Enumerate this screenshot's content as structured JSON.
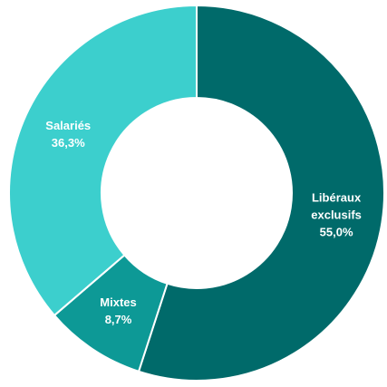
{
  "chart_data": {
    "type": "donut",
    "categories": [
      "Libéraux exclusifs",
      "Mixtes",
      "Salariés"
    ],
    "values": [
      55.0,
      8.7,
      36.3
    ],
    "value_labels": [
      "55,0%",
      "8,7%",
      "36,3%"
    ],
    "colors": [
      "#006a6a",
      "#0d9996",
      "#3ccfcd"
    ]
  }
}
